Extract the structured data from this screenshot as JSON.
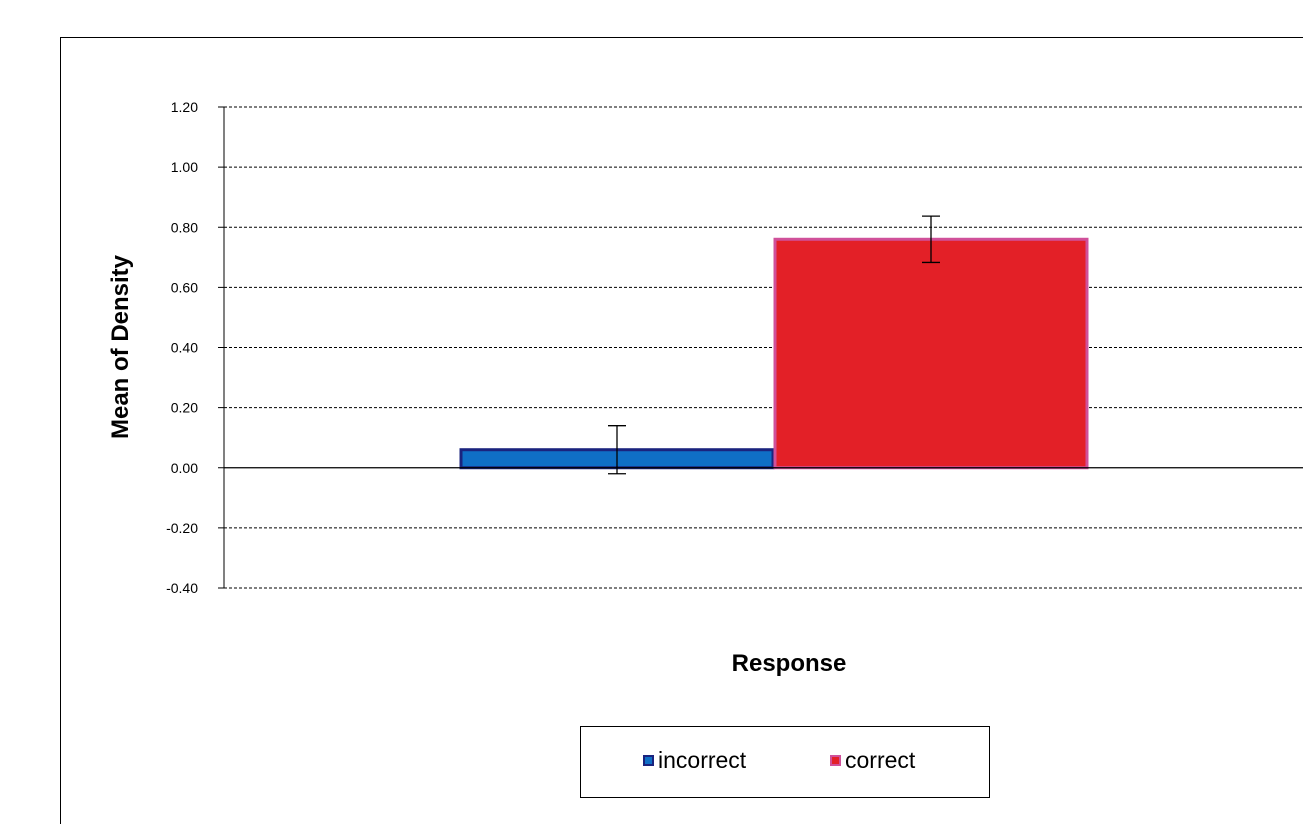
{
  "chart_data": {
    "type": "bar",
    "title": "",
    "xlabel": "Response",
    "ylabel": "Mean of Density",
    "ylim": [
      -0.4,
      1.2
    ],
    "yticks": [
      "1.20",
      "1.00",
      "0.80",
      "0.60",
      "0.40",
      "0.20",
      "0.00",
      "-0.20",
      "-0.40"
    ],
    "ytick_values": [
      1.2,
      1.0,
      0.8,
      0.6,
      0.4,
      0.2,
      0.0,
      -0.2,
      -0.4
    ],
    "grid": true,
    "legend_position": "bottom",
    "series": [
      {
        "name": "incorrect",
        "value": 0.06,
        "error": 0.08,
        "fill": "#0f6fc6",
        "edge": "#1a237e"
      },
      {
        "name": "correct",
        "value": 0.76,
        "error": 0.077,
        "fill": "#e32027",
        "edge": "#d0509a"
      }
    ]
  }
}
